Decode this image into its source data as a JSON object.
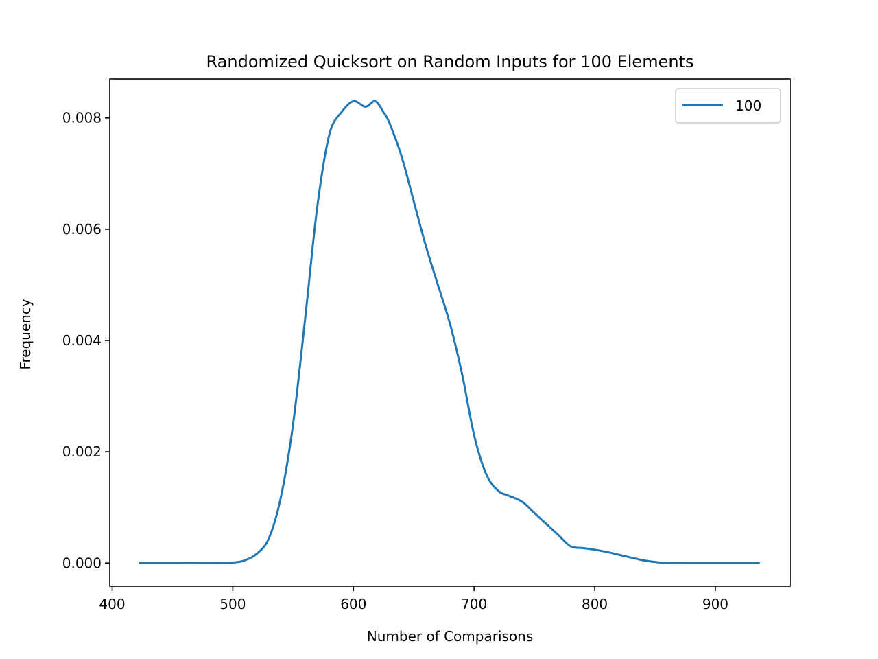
{
  "chart_data": {
    "type": "line",
    "title": "Randomized Quicksort on Random Inputs for 100 Elements",
    "xlabel": "Number of Comparisons",
    "ylabel": "Frequency",
    "xlim": [
      398,
      962
    ],
    "ylim": [
      -0.000416,
      0.0087
    ],
    "xticks": [
      400,
      500,
      600,
      700,
      800,
      900
    ],
    "yticks": [
      0.0,
      0.002,
      0.004,
      0.006,
      0.008
    ],
    "xtick_labels": [
      "400",
      "500",
      "600",
      "700",
      "800",
      "900"
    ],
    "ytick_labels": [
      "0.000",
      "0.002",
      "0.004",
      "0.006",
      "0.008"
    ],
    "grid": false,
    "legend_position": "top-right",
    "series": [
      {
        "name": "100",
        "color": "#1f77b4",
        "x": [
          423,
          450,
          480,
          500,
          510,
          520,
          530,
          540,
          550,
          560,
          570,
          580,
          590,
          600,
          610,
          618,
          625,
          630,
          640,
          650,
          660,
          670,
          680,
          690,
          700,
          710,
          720,
          730,
          740,
          750,
          760,
          770,
          780,
          790,
          800,
          810,
          820,
          830,
          840,
          850,
          860,
          880,
          900,
          920,
          936
        ],
        "y": [
          0.0,
          0.0,
          0.0,
          1e-05,
          5e-05,
          0.00017,
          0.00045,
          0.0012,
          0.0025,
          0.0044,
          0.0064,
          0.0077,
          0.0081,
          0.0083,
          0.0082,
          0.0083,
          0.0081,
          0.0079,
          0.0073,
          0.0065,
          0.0057,
          0.005,
          0.0043,
          0.0034,
          0.0023,
          0.0016,
          0.0013,
          0.0012,
          0.0011,
          0.0009,
          0.0007,
          0.0005,
          0.0003,
          0.00027,
          0.00024,
          0.0002,
          0.00015,
          0.0001,
          5e-05,
          2e-05,
          0.0,
          0.0,
          0.0,
          0.0,
          0.0
        ]
      }
    ]
  }
}
